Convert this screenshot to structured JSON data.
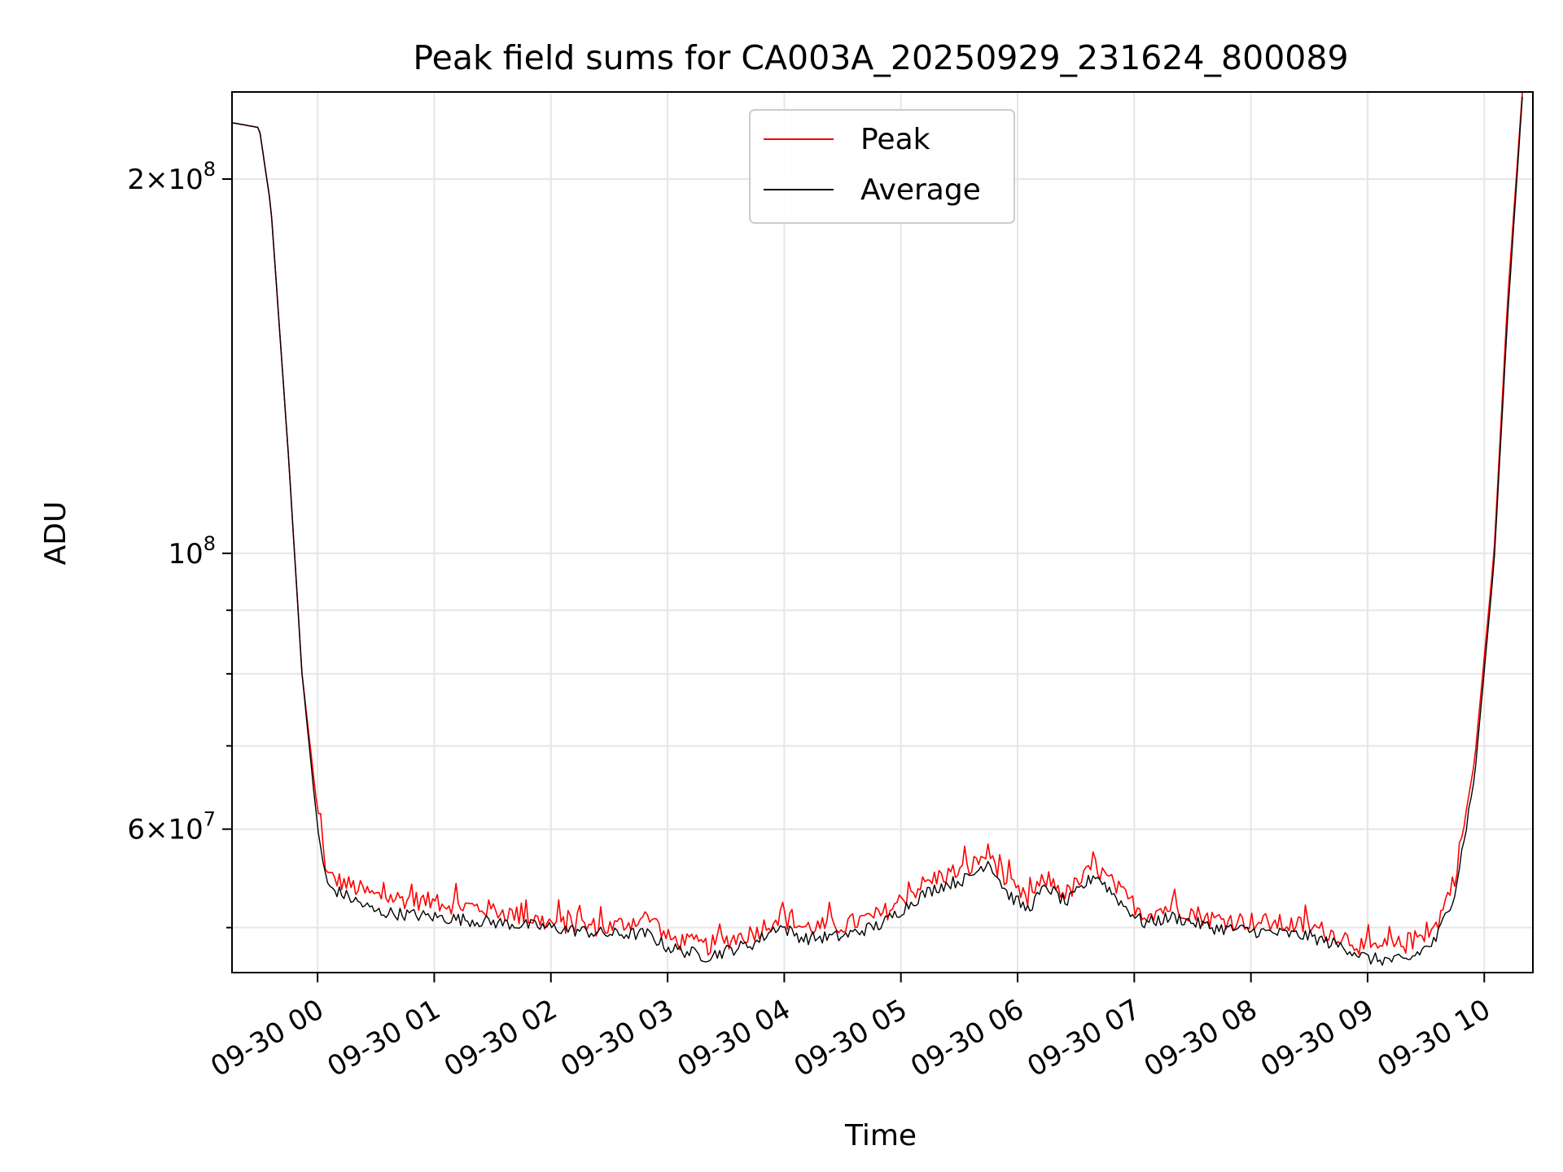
{
  "chart_data": {
    "type": "line",
    "title": "Peak field sums for CA003A_20250929_231624_800089",
    "xlabel": "Time",
    "ylabel": "ADU",
    "yscale": "log",
    "ylim": [
      46000000,
      235000000
    ],
    "xlim": [
      "09-29 23:16",
      "09-30 10:25"
    ],
    "grid": true,
    "legend_position": "top-center",
    "x_ticks": [
      "09-30 00",
      "09-30 01",
      "09-30 02",
      "09-30 03",
      "09-30 04",
      "09-30 05",
      "09-30 06",
      "09-30 07",
      "09-30 08",
      "09-30 09",
      "09-30 10"
    ],
    "y_ticks": [
      {
        "label_base": "2",
        "label_exp": "8",
        "value": 200000000,
        "form": "mult"
      },
      {
        "label_base": "10",
        "label_exp": "8",
        "value": 100000000,
        "form": "pow"
      },
      {
        "label_base": "6",
        "label_exp": "7",
        "value": 60000000,
        "form": "mult"
      }
    ],
    "y_minor_ticks": [
      50000000,
      70000000,
      80000000,
      90000000
    ],
    "series": [
      {
        "name": "Peak",
        "color": "#ff0000",
        "x": [
          "09-29 23:16",
          "09-29 23:30",
          "09-29 23:36",
          "09-29 23:45",
          "09-29 23:52",
          "09-30 00:00",
          "09-30 00:05",
          "09-30 00:30",
          "09-30 01:00",
          "09-30 01:30",
          "09-30 02:00",
          "09-30 02:30",
          "09-30 02:50",
          "09-30 03:00",
          "09-30 03:20",
          "09-30 03:45",
          "09-30 03:57",
          "09-30 04:10",
          "09-30 04:30",
          "09-30 04:50",
          "09-30 05:10",
          "09-30 05:20",
          "09-30 05:35",
          "09-30 05:45",
          "09-30 05:55",
          "09-30 06:05",
          "09-30 06:15",
          "09-30 06:25",
          "09-30 06:40",
          "09-30 06:55",
          "09-30 07:05",
          "09-30 07:20",
          "09-30 07:40",
          "09-30 08:00",
          "09-30 08:30",
          "09-30 08:50",
          "09-30 09:00",
          "09-30 09:20",
          "09-30 09:35",
          "09-30 09:45",
          "09-30 09:55",
          "09-30 10:05",
          "09-30 10:12",
          "09-30 10:20"
        ],
        "values": [
          222000000,
          220000000,
          190000000,
          120000000,
          80000000,
          62000000,
          55000000,
          53000000,
          52400000,
          51700000,
          50400000,
          50000000,
          51000000,
          49000000,
          48300000,
          49600000,
          51000000,
          50000000,
          50200000,
          51200000,
          54000000,
          55000000,
          55800000,
          57500000,
          54200000,
          52600000,
          54800000,
          53200000,
          56000000,
          53000000,
          51300000,
          52000000,
          50800000,
          50600000,
          50100000,
          49000000,
          48000000,
          48500000,
          50000000,
          55000000,
          68000000,
          100000000,
          160000000,
          240000000
        ]
      },
      {
        "name": "Average",
        "color": "#000000",
        "x": [
          "09-29 23:16",
          "09-29 23:30",
          "09-29 23:36",
          "09-29 23:45",
          "09-29 23:52",
          "09-30 00:00",
          "09-30 00:05",
          "09-30 00:30",
          "09-30 01:00",
          "09-30 01:30",
          "09-30 02:00",
          "09-30 02:30",
          "09-30 02:50",
          "09-30 03:00",
          "09-30 03:20",
          "09-30 03:45",
          "09-30 03:57",
          "09-30 04:10",
          "09-30 04:30",
          "09-30 04:50",
          "09-30 05:10",
          "09-30 05:20",
          "09-30 05:35",
          "09-30 05:45",
          "09-30 05:55",
          "09-30 06:05",
          "09-30 06:15",
          "09-30 06:25",
          "09-30 06:40",
          "09-30 06:55",
          "09-30 07:05",
          "09-30 07:20",
          "09-30 07:40",
          "09-30 08:00",
          "09-30 08:30",
          "09-30 08:50",
          "09-30 09:00",
          "09-30 09:20",
          "09-30 09:35",
          "09-30 09:45",
          "09-30 09:55",
          "09-30 10:05",
          "09-30 10:12",
          "09-30 10:20"
        ],
        "values": [
          222000000,
          220000000,
          190000000,
          120000000,
          80000000,
          60000000,
          54000000,
          51500000,
          51000000,
          50500000,
          50000000,
          49400000,
          49400000,
          48200000,
          47400000,
          48600000,
          50200000,
          49000000,
          49200000,
          50300000,
          53000000,
          54000000,
          54800000,
          56600000,
          53200000,
          51700000,
          54000000,
          52300000,
          55200000,
          52000000,
          50400000,
          51000000,
          50000000,
          49700000,
          49200000,
          48100000,
          47200000,
          47000000,
          48800000,
          53500000,
          66000000,
          98000000,
          155000000,
          238000000
        ]
      }
    ]
  }
}
